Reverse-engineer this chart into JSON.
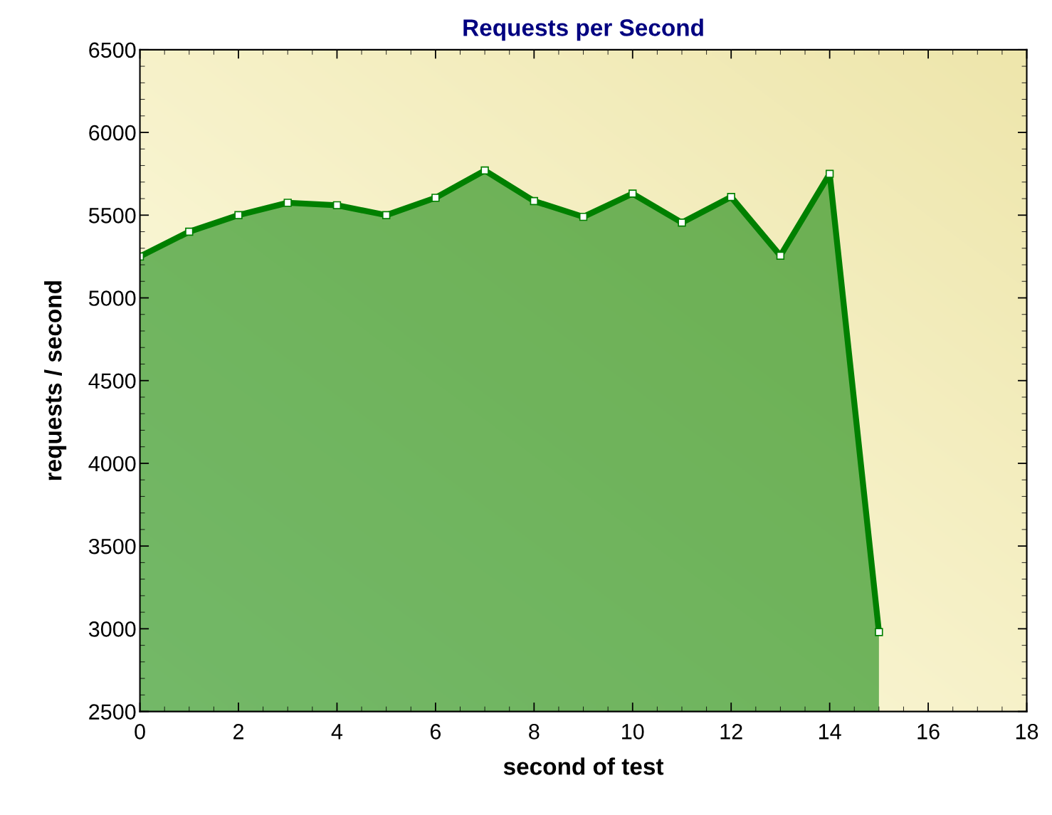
{
  "chart_data": {
    "type": "area",
    "title": "Requests per Second",
    "xlabel": "second of test",
    "ylabel": "requests / second",
    "x": [
      0,
      1,
      2,
      3,
      4,
      5,
      6,
      7,
      8,
      9,
      10,
      11,
      12,
      13,
      14,
      15
    ],
    "series": [
      {
        "color": "#008000",
        "values": [
          5250,
          5400,
          5500,
          5575,
          5560,
          5500,
          5605,
          5770,
          5585,
          5490,
          5630,
          5455,
          5610,
          5255,
          5750,
          2980
        ]
      }
    ],
    "xlim": [
      0,
      18
    ],
    "xticks": [
      0,
      2,
      4,
      6,
      8,
      10,
      12,
      14,
      16,
      18
    ],
    "ylim": [
      2500,
      6500
    ],
    "yticks": [
      2500,
      3000,
      3500,
      4000,
      4500,
      5000,
      5500,
      6000,
      6500
    ],
    "marker": "square",
    "line_style": "solid",
    "grid": false
  }
}
